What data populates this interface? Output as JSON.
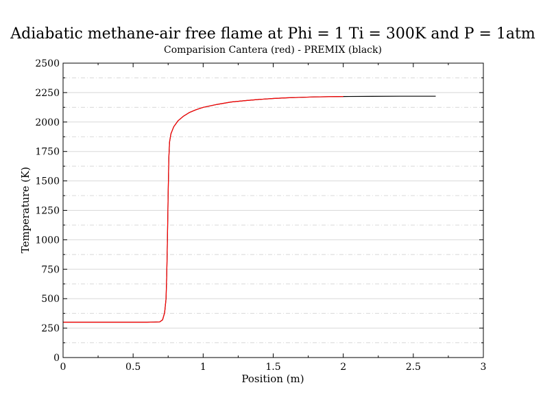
{
  "chart_data": {
    "type": "line",
    "title": "Adiabatic methane-air free flame at Phi = 1 Ti = 300K and P = 1atm",
    "subtitle": "Comparision Cantera (red) - PREMIX (black)",
    "xlabel": "Position (m)",
    "ylabel": "Temperature (K)",
    "xlim": [
      0,
      3
    ],
    "ylim": [
      0,
      2500
    ],
    "xticks": [
      0,
      0.5,
      1,
      1.5,
      2,
      2.5,
      3
    ],
    "xtick_labels": [
      "0",
      "0.5",
      "1",
      "1.5",
      "2",
      "2.5",
      "3"
    ],
    "yticks": [
      0,
      250,
      500,
      750,
      1000,
      1250,
      1500,
      1750,
      2000,
      2250,
      2500
    ],
    "ytick_labels": [
      "0",
      "250",
      "500",
      "750",
      "1000",
      "1250",
      "1500",
      "1750",
      "2000",
      "2250",
      "2500"
    ],
    "grid": true,
    "series": [
      {
        "name": "PREMIX",
        "color": "#000000",
        "x": [
          0,
          0.2,
          0.4,
          0.6,
          0.65,
          0.69,
          0.71,
          0.725,
          0.735,
          0.74,
          0.745,
          0.75,
          0.755,
          0.76,
          0.77,
          0.79,
          0.82,
          0.86,
          0.9,
          0.95,
          1.0,
          1.1,
          1.2,
          1.3,
          1.4,
          1.5,
          1.6,
          1.7,
          1.8,
          1.9,
          2.0,
          2.2,
          2.4,
          2.66
        ],
        "y": [
          300,
          300,
          300,
          300,
          301,
          303,
          320,
          380,
          500,
          700,
          1000,
          1400,
          1700,
          1830,
          1900,
          1960,
          2010,
          2050,
          2080,
          2105,
          2125,
          2150,
          2170,
          2182,
          2192,
          2200,
          2206,
          2210,
          2213,
          2215,
          2217,
          2218,
          2219,
          2219
        ]
      },
      {
        "name": "Cantera",
        "color": "#ff0000",
        "x": [
          0,
          0.2,
          0.4,
          0.6,
          0.65,
          0.69,
          0.71,
          0.725,
          0.735,
          0.74,
          0.745,
          0.75,
          0.755,
          0.76,
          0.77,
          0.79,
          0.82,
          0.86,
          0.9,
          0.95,
          1.0,
          1.1,
          1.2,
          1.3,
          1.4,
          1.5,
          1.6,
          1.7,
          1.8,
          1.9,
          2.0
        ],
        "y": [
          300,
          300,
          300,
          300,
          301,
          303,
          320,
          380,
          500,
          700,
          1000,
          1400,
          1700,
          1830,
          1900,
          1960,
          2010,
          2050,
          2080,
          2105,
          2125,
          2150,
          2170,
          2182,
          2192,
          2200,
          2206,
          2210,
          2213,
          2215,
          2217
        ]
      }
    ]
  }
}
